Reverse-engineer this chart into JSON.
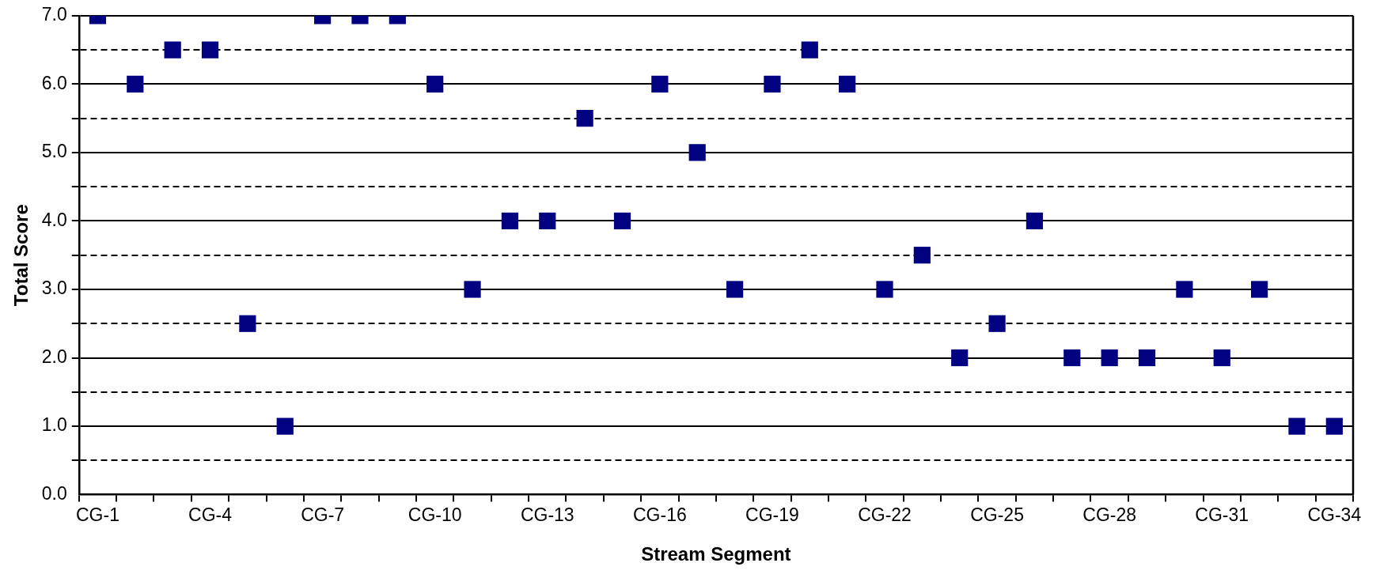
{
  "chart_data": {
    "type": "scatter",
    "xlabel": "Stream Segment",
    "ylabel": "Total Score",
    "categories": [
      "CG-1",
      null,
      null,
      "CG-4",
      null,
      null,
      "CG-7",
      null,
      null,
      "CG-10",
      null,
      null,
      "CG-13",
      null,
      null,
      "CG-16",
      null,
      null,
      "CG-19",
      null,
      null,
      "CG-22",
      null,
      null,
      "CG-25",
      null,
      null,
      "CG-28",
      null,
      null,
      "CG-31",
      null,
      null,
      "CG-34"
    ],
    "values": [
      7,
      6,
      6.5,
      6.5,
      2.5,
      1,
      7,
      7,
      7,
      6,
      3,
      4,
      4,
      5.5,
      4,
      6,
      5,
      3,
      6,
      6.5,
      6,
      3,
      3.5,
      2,
      2.5,
      4,
      2,
      2,
      2,
      3,
      2,
      3,
      1,
      1
    ],
    "color": "#000080",
    "marker": "square",
    "grid": "y",
    "legend": false,
    "ylim": [
      0,
      7
    ],
    "yticks": [
      {
        "value": 0,
        "label": "0.0"
      },
      {
        "value": 0.5,
        "label": null
      },
      {
        "value": 1,
        "label": "1.0"
      },
      {
        "value": 1.5,
        "label": null
      },
      {
        "value": 2,
        "label": "2.0"
      },
      {
        "value": 2.5,
        "label": null
      },
      {
        "value": 3,
        "label": "3.0"
      },
      {
        "value": 3.5,
        "label": null
      },
      {
        "value": 4,
        "label": "4.0"
      },
      {
        "value": 4.5,
        "label": null
      },
      {
        "value": 5,
        "label": "5.0"
      },
      {
        "value": 5.5,
        "label": null
      },
      {
        "value": 6,
        "label": "6.0"
      },
      {
        "value": 6.5,
        "label": null
      },
      {
        "value": 7,
        "label": "7.0"
      }
    ]
  }
}
